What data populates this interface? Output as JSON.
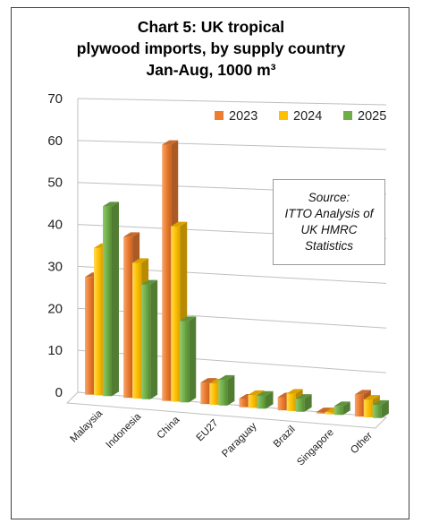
{
  "chart_data": {
    "type": "bar",
    "title": [
      "Chart 5: UK tropical",
      "plywood imports, by supply country",
      "Jan-Aug, 1000 m³"
    ],
    "categories": [
      "Malaysia",
      "Indonesia",
      "China",
      "EU27",
      "Paraguay",
      "Brazil",
      "Singapore",
      "Other"
    ],
    "series": [
      {
        "name": "2023",
        "color": "#ED7D31",
        "values": [
          28,
          38,
          60,
          5,
          2,
          3,
          0.3,
          5
        ]
      },
      {
        "name": "2024",
        "color": "#FFC000",
        "values": [
          35,
          32,
          41,
          5,
          3,
          4,
          0.5,
          4
        ]
      },
      {
        "name": "2025",
        "color": "#70AD47",
        "values": [
          45,
          27,
          19,
          6,
          3,
          3,
          2,
          3
        ]
      }
    ],
    "ylim": [
      0,
      70
    ],
    "yticks": [
      0,
      10,
      20,
      30,
      40,
      50,
      60,
      70
    ],
    "grid": true,
    "legend_position": "top-right",
    "annotation": [
      "Source:",
      "ITTO Analysis of",
      "UK HMRC",
      "Statistics"
    ]
  }
}
